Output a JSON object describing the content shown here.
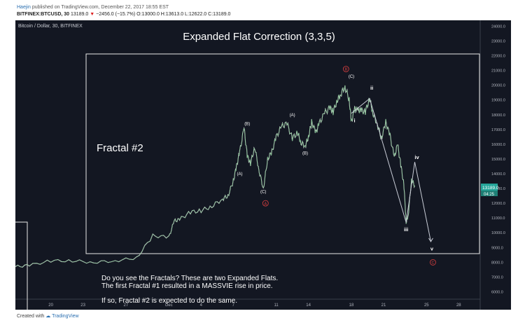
{
  "header": {
    "author": "Haejin",
    "published_text": "published on TradingView.com, December 22, 2017 18:55 EST",
    "symbol": "BITFINEX:BTCUSD, 30",
    "last": "13189.0",
    "change": "−2456.0 (−15.7%)",
    "ohlc": "O:13000.0 H:13613.0 L:12622.0 C:13189.0"
  },
  "footer": {
    "created_with": "Created with",
    "brand": "TradingView"
  },
  "chart_data": {
    "type": "line",
    "source_label": "Bitcoin / Dollar, 30, BITFINEX",
    "title": "Expanded Flat Correction (3,3,5)",
    "fractal_label": "Fractal #2",
    "note_lines": [
      "Do you see the Fractals? These are two Expanded Flats.",
      "The first Fractal #1 resulted in a MASSVIE rise in price.",
      "",
      "If so, Fractal #2 is expected to do the same."
    ],
    "price_badge": "13189.0",
    "countdown_badge": "04:25",
    "y_ticks": [
      "24000.0",
      "23000.0",
      "22000.0",
      "21000.0",
      "20000.0",
      "19000.0",
      "18000.0",
      "17000.0",
      "16000.0",
      "15000.0",
      "14000.0",
      "13000.0",
      "12000.0",
      "11000.0",
      "10000.0",
      "9000.0",
      "8000.0",
      "7000.0",
      "6000.0"
    ],
    "ylim": [
      5500,
      24400
    ],
    "x_ticks": [
      "20",
      "23",
      "27",
      "Dec",
      "4",
      "7",
      "11",
      "14",
      "18",
      "21",
      "25",
      "28"
    ],
    "x_tick_days": [
      -11,
      -8,
      -4,
      0,
      3,
      6,
      10,
      13,
      17,
      20,
      24,
      27
    ],
    "xlim": [
      -14.3,
      29
    ],
    "x_unit": "day offset from Dec 1",
    "series": [
      {
        "values_x": [
          -14.3,
          -13,
          -11,
          -9,
          -7,
          -5,
          -3,
          -1.5,
          0,
          0.5,
          1,
          2,
          3,
          4,
          5,
          5.5,
          6,
          6.3,
          6.6,
          7,
          7.3,
          7.6,
          8,
          8.4,
          8.8,
          9.2,
          9.6,
          10,
          10.5,
          11,
          11.5,
          12,
          12.3,
          12.7,
          13,
          13.3,
          13.7,
          14,
          14.5,
          15,
          15.3,
          15.7,
          16,
          16.4,
          16.8,
          17,
          17.3,
          17.6,
          17.9,
          18.3,
          18.7,
          19,
          19.4,
          19.8,
          20.2,
          20.6,
          21,
          21.3,
          21.6,
          21.9,
          22.1,
          22.3,
          22.6,
          22.9
        ],
        "values_y": [
          7700,
          7800,
          8100,
          8100,
          8000,
          8100,
          8300,
          9800,
          9700,
          10800,
          10900,
          11400,
          11500,
          11800,
          12300,
          12500,
          13500,
          14500,
          15500,
          17100,
          15200,
          14700,
          15800,
          14200,
          13000,
          15000,
          15500,
          16500,
          17200,
          17400,
          16400,
          16800,
          16100,
          15900,
          16500,
          17500,
          16800,
          17400,
          18100,
          18500,
          18200,
          19000,
          19400,
          19900,
          19000,
          17500,
          18400,
          18300,
          18300,
          18200,
          19100,
          18100,
          17400,
          16400,
          17500,
          16600,
          15100,
          16000,
          14600,
          13200,
          10700,
          11200,
          13600,
          13200
        ]
      }
    ],
    "wave_labels": {
      "A_small": "(A)",
      "B_small": "(B)",
      "C_small": "(C)",
      "A_mid": "(A)",
      "B_mid": "(B)",
      "C_top": "(C)",
      "A_circle": "A",
      "B_circle": "B",
      "C_circle": "C",
      "i": "i",
      "ii": "ii",
      "iii": "iii",
      "iv": "iv",
      "v": "v"
    },
    "grid": false
  }
}
